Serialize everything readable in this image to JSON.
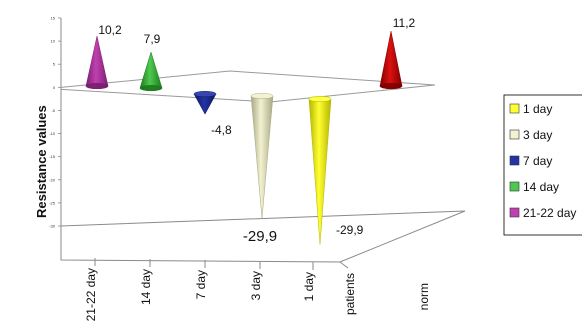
{
  "chart_data": {
    "type": "bar",
    "ylabel": "Resistance values",
    "yticks": [
      "15",
      "10",
      "5",
      "0",
      "-5",
      "-10",
      "-15",
      "-20",
      "-25",
      "-30"
    ],
    "ylim": [
      -30,
      15
    ],
    "categories": [
      "21-22 day",
      "14 day",
      "7 day",
      "3 day",
      "1  day"
    ],
    "depth_categories": [
      "patients",
      "norm"
    ],
    "series": [
      {
        "name": "1  day",
        "color": "#ffff33",
        "dark": "#b5b500",
        "category": "1  day",
        "value": -29.9,
        "label": "-29,9"
      },
      {
        "name": "3 day",
        "color": "#f2f2cf",
        "dark": "#a8a887",
        "category": "3 day",
        "value": -29.9,
        "label": "-29,9"
      },
      {
        "name": "7 day",
        "color": "#2233a6",
        "dark": "#0f185e",
        "category": "7 day",
        "value": -4.8,
        "label": "-4,8"
      },
      {
        "name": "14 day",
        "color": "#4ec94e",
        "dark": "#1d7a1d",
        "category": "14 day",
        "value": 7.9,
        "label": "7,9"
      },
      {
        "name": "21-22 day",
        "color": "#c040b0",
        "dark": "#7a1f6e",
        "category": "21-22 day",
        "value": 10.2,
        "label": "10,2"
      },
      {
        "name": "norm",
        "color": "#dd1111",
        "dark": "#7f0000",
        "category": "norm",
        "value": 11.2,
        "label": "11,2"
      }
    ],
    "legend": [
      "1  day",
      "3 day",
      "7 day",
      "14 day",
      "21-22 day"
    ],
    "legend_position": "right",
    "grid": false
  }
}
